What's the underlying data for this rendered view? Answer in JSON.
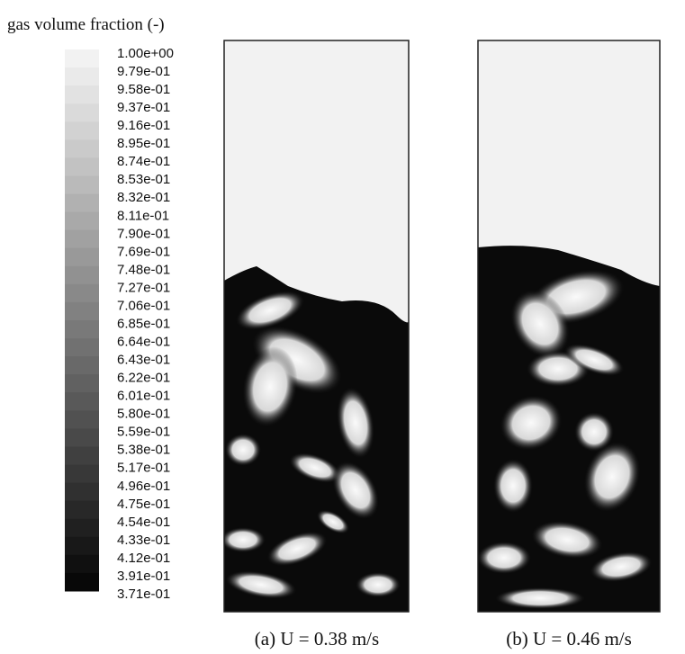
{
  "title": "gas volume fraction (-)",
  "colorbar": {
    "labels": [
      "1.00e+00",
      "9.79e-01",
      "9.58e-01",
      "9.37e-01",
      "9.16e-01",
      "8.95e-01",
      "8.74e-01",
      "8.53e-01",
      "8.32e-01",
      "8.11e-01",
      "7.90e-01",
      "7.69e-01",
      "7.48e-01",
      "7.27e-01",
      "7.06e-01",
      "6.85e-01",
      "6.64e-01",
      "6.43e-01",
      "6.22e-01",
      "6.01e-01",
      "5.80e-01",
      "5.59e-01",
      "5.38e-01",
      "5.17e-01",
      "4.96e-01",
      "4.75e-01",
      "4.54e-01",
      "4.33e-01",
      "4.12e-01",
      "3.91e-01",
      "3.71e-01"
    ]
  },
  "panels": [
    {
      "caption": "(a) U = 0.38 m/s"
    },
    {
      "caption": "(b) U = 0.46 m/s"
    }
  ]
}
